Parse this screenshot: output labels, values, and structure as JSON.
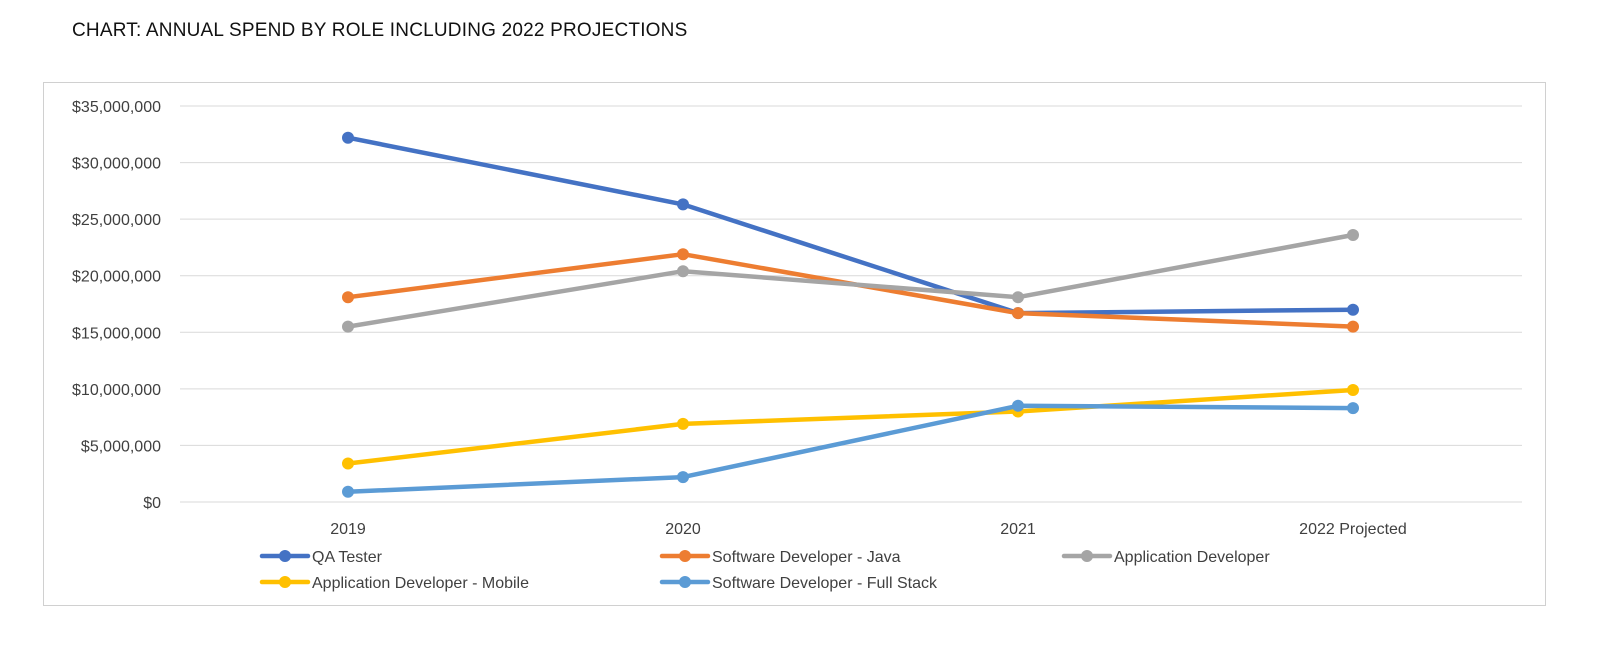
{
  "page": {
    "title": "CHART: ANNUAL SPEND BY ROLE INCLUDING 2022 PROJECTIONS"
  },
  "chart_data": {
    "type": "line",
    "title": "",
    "xlabel": "",
    "ylabel": "",
    "categories": [
      "2019",
      "2020",
      "2021",
      "2022 Projected"
    ],
    "ylim": [
      0,
      35000000
    ],
    "yticks": [
      0,
      5000000,
      10000000,
      15000000,
      20000000,
      25000000,
      30000000,
      35000000
    ],
    "ytick_labels": [
      "$0",
      "$5,000,000",
      "$10,000,000",
      "$15,000,000",
      "$20,000,000",
      "$25,000,000",
      "$30,000,000",
      "$35,000,000"
    ],
    "grid": true,
    "legend_position": "bottom",
    "series": [
      {
        "name": "QA Tester",
        "color": "#4472C4",
        "values": [
          32200000,
          26300000,
          16700000,
          17000000
        ]
      },
      {
        "name": "Software Developer - Java",
        "color": "#ED7D31",
        "values": [
          18100000,
          21900000,
          16700000,
          15500000
        ]
      },
      {
        "name": "Application Developer",
        "color": "#A5A5A5",
        "values": [
          15500000,
          20400000,
          18100000,
          23600000
        ]
      },
      {
        "name": "Application Developer - Mobile",
        "color": "#FFC000",
        "values": [
          3400000,
          6900000,
          8000000,
          9900000
        ]
      },
      {
        "name": "Software Developer - Full Stack",
        "color": "#5B9BD5",
        "values": [
          900000,
          2200000,
          8500000,
          8300000
        ]
      }
    ]
  }
}
